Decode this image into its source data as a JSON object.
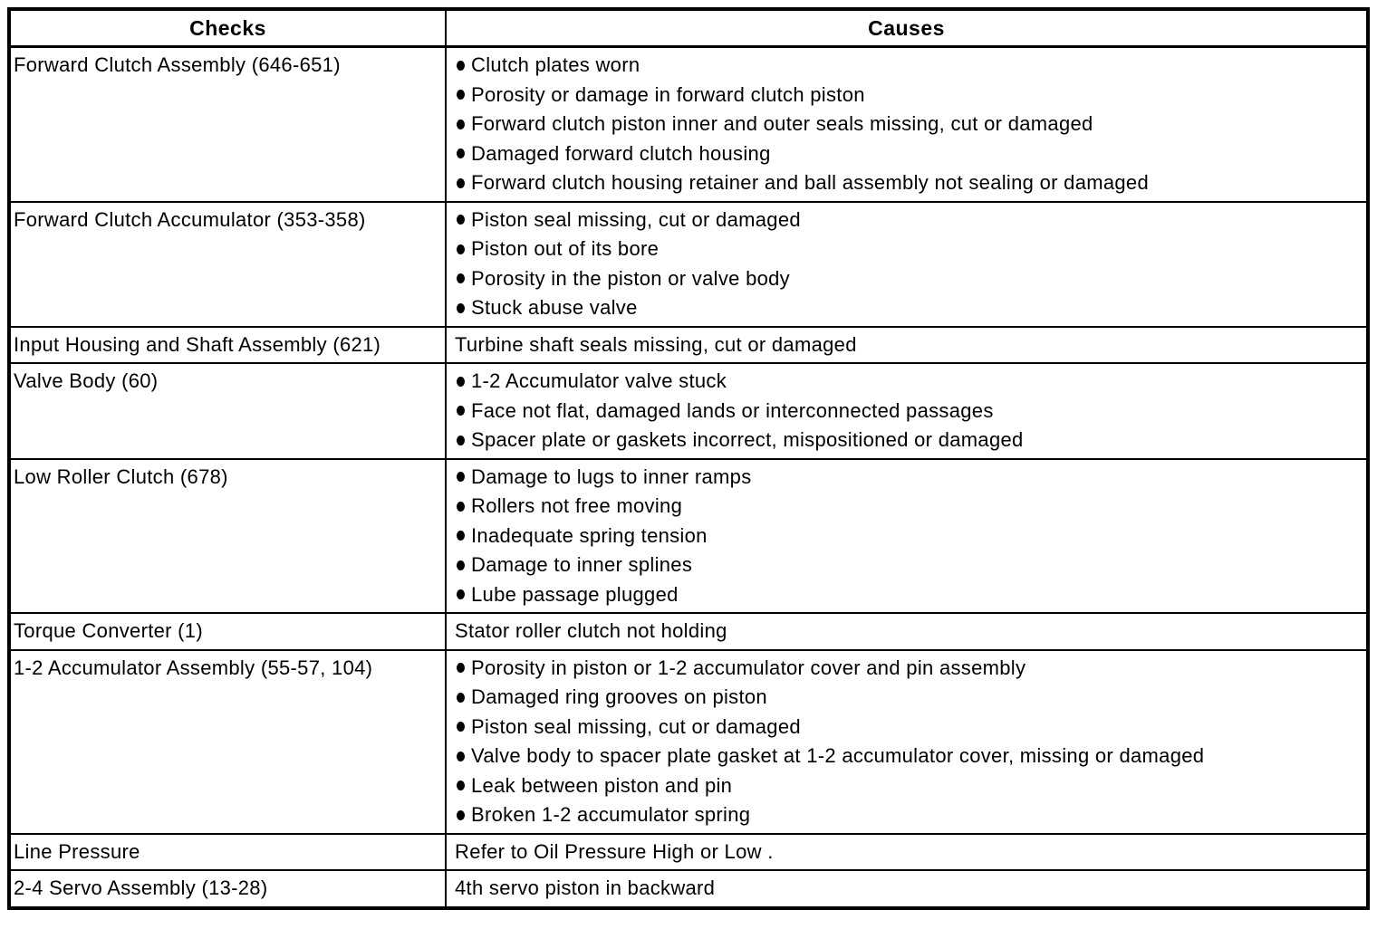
{
  "colors": {
    "text": "#000000",
    "border": "#000000",
    "background": "#ffffff"
  },
  "table": {
    "headers": {
      "checks": "Checks",
      "causes": "Causes"
    },
    "rows": [
      {
        "check": "Forward Clutch Assembly (646-651)",
        "bulleted": true,
        "causes": [
          "Clutch plates worn",
          "Porosity or damage in forward clutch piston",
          "Forward clutch piston inner and outer seals missing, cut or damaged",
          "Damaged forward clutch housing",
          "Forward clutch housing retainer and ball assembly not sealing or damaged"
        ]
      },
      {
        "check": "Forward Clutch Accumulator (353-358)",
        "bulleted": true,
        "causes": [
          "Piston seal missing, cut or damaged",
          "Piston out of its bore",
          "Porosity in the piston or valve body",
          "Stuck abuse valve"
        ]
      },
      {
        "check": "Input Housing and Shaft Assembly (621)",
        "bulleted": false,
        "causes": [
          "Turbine shaft seals missing, cut or damaged"
        ]
      },
      {
        "check": "Valve Body (60)",
        "bulleted": true,
        "causes": [
          "1-2 Accumulator valve stuck",
          "Face not flat, damaged lands or interconnected passages",
          "Spacer plate or gaskets incorrect, mispositioned or damaged"
        ]
      },
      {
        "check": "Low Roller Clutch (678)",
        "bulleted": true,
        "causes": [
          "Damage to lugs to inner ramps",
          "Rollers not free moving",
          "Inadequate spring tension",
          "Damage to inner splines",
          "Lube passage plugged"
        ]
      },
      {
        "check": "Torque Converter (1)",
        "bulleted": false,
        "causes": [
          "Stator roller clutch not holding"
        ]
      },
      {
        "check": "1-2 Accumulator Assembly (55-57, 104)",
        "bulleted": true,
        "causes": [
          "Porosity in piston or 1-2 accumulator cover and pin assembly",
          "Damaged ring grooves on piston",
          "Piston seal missing, cut or damaged",
          "Valve body to spacer plate gasket at 1-2 accumulator cover, missing or damaged",
          "Leak between piston and pin",
          "Broken 1-2 accumulator spring"
        ]
      },
      {
        "check": "Line Pressure",
        "bulleted": false,
        "causes": [
          "Refer to Oil Pressure High or Low ."
        ]
      },
      {
        "check": "2-4 Servo Assembly (13-28)",
        "bulleted": false,
        "causes": [
          "4th servo piston in backward"
        ]
      }
    ]
  }
}
